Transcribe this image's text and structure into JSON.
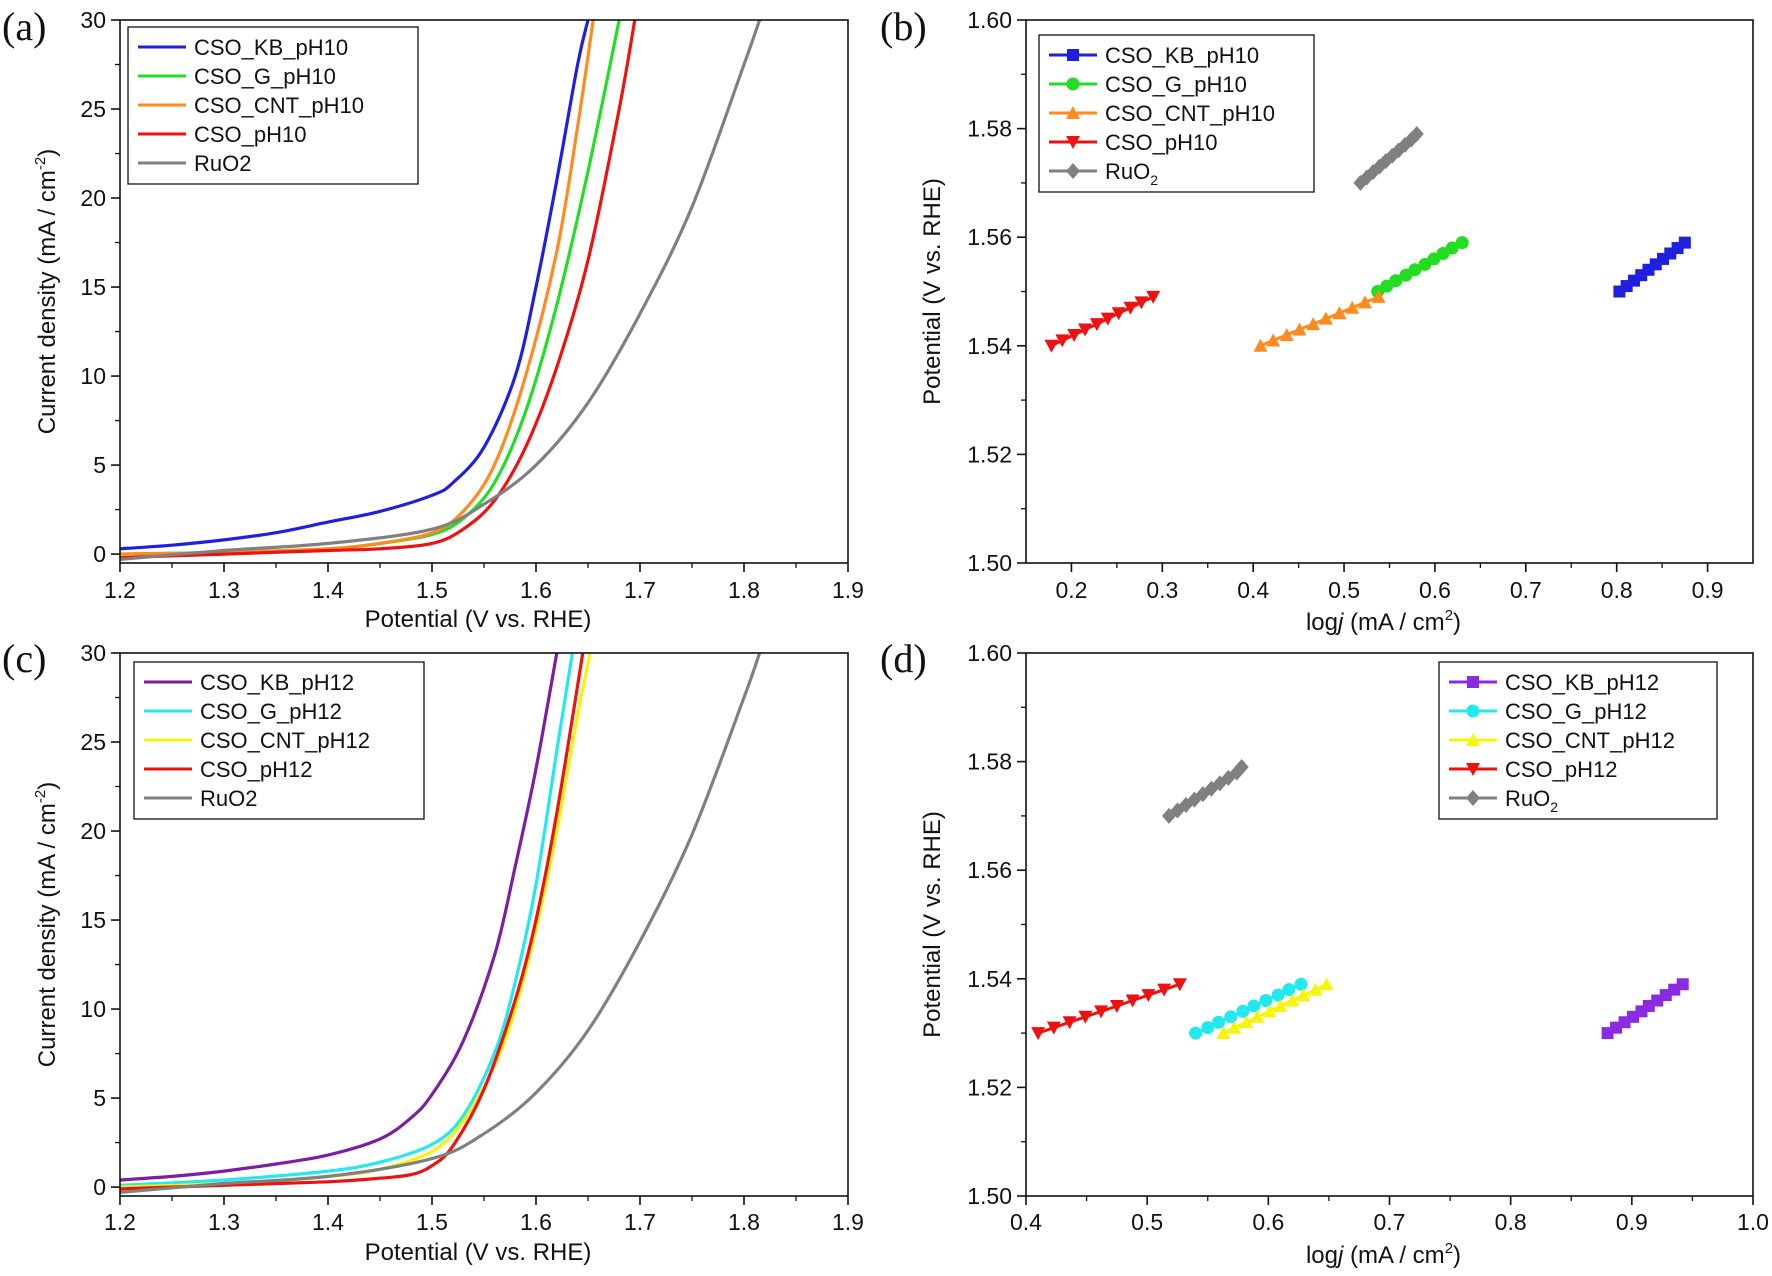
{
  "figure": {
    "panels": [
      {
        "id": "a",
        "label": "(a)",
        "type": "line",
        "xlabel": "Potential (V vs. RHE)",
        "ylabel": "Current density (mA / cm⁻²)",
        "xlim": [
          1.2,
          1.9
        ],
        "ylim": [
          -0.5,
          30
        ],
        "xticks": [
          1.2,
          1.3,
          1.4,
          1.5,
          1.6,
          1.7,
          1.8,
          1.9
        ],
        "xtick_labels": [
          "1.2",
          "1.3",
          "1.4",
          "1.5",
          "1.6",
          "1.7",
          "1.8",
          "1.9"
        ],
        "yticks": [
          0,
          5,
          10,
          15,
          20,
          25,
          30
        ],
        "ytick_labels": [
          "0",
          "5",
          "10",
          "15",
          "20",
          "25",
          "30"
        ],
        "legend_position": "top-left",
        "series": [
          {
            "name": "CSO_KB_pH10",
            "color": "#1f1fe0",
            "x": [
              1.2,
              1.25,
              1.3,
              1.35,
              1.4,
              1.45,
              1.5,
              1.52,
              1.55,
              1.58,
              1.6,
              1.62,
              1.64,
              1.65
            ],
            "y": [
              0.3,
              0.5,
              0.8,
              1.2,
              1.8,
              2.4,
              3.3,
              4.0,
              6.0,
              10.0,
              15.0,
              21.0,
              27.5,
              30
            ]
          },
          {
            "name": "CSO_G_pH10",
            "color": "#22dd22",
            "x": [
              1.2,
              1.3,
              1.4,
              1.45,
              1.5,
              1.53,
              1.56,
              1.59,
              1.62,
              1.65,
              1.68
            ],
            "y": [
              0.0,
              0.1,
              0.3,
              0.6,
              1.1,
              2.0,
              4.0,
              8.0,
              14.0,
              21.5,
              30
            ]
          },
          {
            "name": "CSO_CNT_pH10",
            "color": "#ff8a1e",
            "x": [
              1.2,
              1.3,
              1.4,
              1.45,
              1.5,
              1.53,
              1.56,
              1.59,
              1.62,
              1.64,
              1.655
            ],
            "y": [
              0.0,
              0.1,
              0.3,
              0.6,
              1.2,
              2.4,
              5.0,
              10.0,
              17.0,
              24.0,
              30
            ]
          },
          {
            "name": "CSO_pH10",
            "color": "#ee1111",
            "x": [
              1.2,
              1.3,
              1.4,
              1.45,
              1.5,
              1.53,
              1.56,
              1.59,
              1.62,
              1.65,
              1.68,
              1.695
            ],
            "y": [
              -0.2,
              0.0,
              0.2,
              0.3,
              0.6,
              1.4,
              3.0,
              6.0,
              10.5,
              16.5,
              25.0,
              30
            ]
          },
          {
            "name": "RuO2",
            "color": "#808080",
            "x": [
              1.2,
              1.3,
              1.4,
              1.5,
              1.55,
              1.6,
              1.65,
              1.7,
              1.75,
              1.8,
              1.815
            ],
            "y": [
              -0.3,
              0.2,
              0.6,
              1.4,
              2.8,
              5.0,
              8.5,
              13.5,
              19.5,
              27.5,
              30
            ]
          }
        ]
      },
      {
        "id": "b",
        "label": "(b)",
        "type": "scatter",
        "xlabel": "logj (mA / cm²)",
        "ylabel": "Potential (V vs. RHE)",
        "xlim": [
          0.15,
          0.95
        ],
        "ylim": [
          1.5,
          1.6
        ],
        "xticks": [
          0.2,
          0.3,
          0.4,
          0.5,
          0.6,
          0.7,
          0.8,
          0.9
        ],
        "xtick_labels": [
          "0.2",
          "0.3",
          "0.4",
          "0.5",
          "0.6",
          "0.7",
          "0.8",
          "0.9"
        ],
        "yticks": [
          1.5,
          1.52,
          1.54,
          1.56,
          1.58,
          1.6
        ],
        "ytick_labels": [
          "1.50",
          "1.52",
          "1.54",
          "1.56",
          "1.58",
          "1.60"
        ],
        "legend_position": "top-left",
        "series": [
          {
            "name": "CSO_KB_pH10",
            "color": "#1f1fe0",
            "marker": "square",
            "x": [
              0.803,
              0.811,
              0.819,
              0.827,
              0.835,
              0.843,
              0.851,
              0.859,
              0.867,
              0.875
            ],
            "y": [
              1.55,
              1.551,
              1.552,
              1.553,
              1.554,
              1.555,
              1.556,
              1.557,
              1.558,
              1.559
            ]
          },
          {
            "name": "CSO_G_pH10",
            "color": "#22dd22",
            "marker": "circle",
            "x": [
              0.537,
              0.547,
              0.557,
              0.568,
              0.578,
              0.589,
              0.599,
              0.609,
              0.619,
              0.63
            ],
            "y": [
              1.55,
              1.551,
              1.552,
              1.553,
              1.554,
              1.555,
              1.556,
              1.557,
              1.558,
              1.559
            ]
          },
          {
            "name": "CSO_CNT_pH10",
            "color": "#ff8a1e",
            "marker": "triangle-up",
            "x": [
              0.408,
              0.422,
              0.437,
              0.451,
              0.466,
              0.48,
              0.495,
              0.509,
              0.523,
              0.538
            ],
            "y": [
              1.54,
              1.541,
              1.542,
              1.543,
              1.544,
              1.545,
              1.546,
              1.547,
              1.548,
              1.549
            ]
          },
          {
            "name": "CSO_pH10",
            "color": "#ee1111",
            "marker": "triangle-down",
            "x": [
              0.178,
              0.19,
              0.203,
              0.215,
              0.228,
              0.24,
              0.252,
              0.265,
              0.277,
              0.29
            ],
            "y": [
              1.54,
              1.541,
              1.542,
              1.543,
              1.544,
              1.545,
              1.546,
              1.547,
              1.548,
              1.549
            ]
          },
          {
            "name": "RuO2",
            "color": "#808080",
            "marker": "diamond",
            "x": [
              0.518,
              0.525,
              0.532,
              0.539,
              0.546,
              0.553,
              0.56,
              0.567,
              0.574,
              0.58
            ],
            "y": [
              1.57,
              1.571,
              1.572,
              1.573,
              1.574,
              1.575,
              1.576,
              1.577,
              1.578,
              1.579
            ]
          }
        ]
      },
      {
        "id": "c",
        "label": "(c)",
        "type": "line",
        "xlabel": "Potential (V vs. RHE)",
        "ylabel": "Current density (mA / cm⁻²)",
        "xlim": [
          1.2,
          1.9
        ],
        "ylim": [
          -0.5,
          30
        ],
        "xticks": [
          1.2,
          1.3,
          1.4,
          1.5,
          1.6,
          1.7,
          1.8,
          1.9
        ],
        "xtick_labels": [
          "1.2",
          "1.3",
          "1.4",
          "1.5",
          "1.6",
          "1.7",
          "1.8",
          "1.9"
        ],
        "yticks": [
          0,
          5,
          10,
          15,
          20,
          25,
          30
        ],
        "ytick_labels": [
          "0",
          "5",
          "10",
          "15",
          "20",
          "25",
          "30"
        ],
        "legend_position": "top-left",
        "series": [
          {
            "name": "CSO_KB_pH12",
            "color": "#7b1fa2",
            "x": [
              1.2,
              1.25,
              1.3,
              1.35,
              1.4,
              1.45,
              1.48,
              1.5,
              1.53,
              1.56,
              1.58,
              1.6,
              1.62
            ],
            "y": [
              0.4,
              0.6,
              0.9,
              1.3,
              1.8,
              2.7,
              3.9,
              5.2,
              8.2,
              13.0,
              18.0,
              23.5,
              30
            ]
          },
          {
            "name": "CSO_G_pH12",
            "color": "#22e8f0",
            "x": [
              1.2,
              1.3,
              1.4,
              1.45,
              1.5,
              1.53,
              1.56,
              1.58,
              1.6,
              1.62,
              1.635
            ],
            "y": [
              0.1,
              0.4,
              0.9,
              1.4,
              2.4,
              4.0,
              7.5,
              11.5,
              17.0,
              24.5,
              30
            ]
          },
          {
            "name": "CSO_CNT_pH12",
            "color": "#f5f50a",
            "x": [
              1.2,
              1.3,
              1.4,
              1.45,
              1.5,
              1.53,
              1.56,
              1.58,
              1.6,
              1.62,
              1.64,
              1.652
            ],
            "y": [
              0.0,
              0.2,
              0.6,
              1.0,
              2.0,
              3.7,
              6.8,
              10.0,
              14.5,
              20.0,
              26.5,
              30
            ]
          },
          {
            "name": "CSO_pH12",
            "color": "#ee1111",
            "x": [
              1.2,
              1.3,
              1.4,
              1.45,
              1.48,
              1.5,
              1.52,
              1.55,
              1.58,
              1.6,
              1.62,
              1.645
            ],
            "y": [
              -0.1,
              0.1,
              0.3,
              0.5,
              0.7,
              1.2,
              2.3,
              5.5,
              10.5,
              15.0,
              21.0,
              30
            ]
          },
          {
            "name": "RuO2",
            "color": "#808080",
            "x": [
              1.2,
              1.3,
              1.4,
              1.5,
              1.55,
              1.6,
              1.65,
              1.7,
              1.75,
              1.8,
              1.815
            ],
            "y": [
              -0.3,
              0.2,
              0.6,
              1.6,
              3.0,
              5.3,
              8.8,
              13.8,
              19.8,
              27.5,
              30
            ]
          }
        ]
      },
      {
        "id": "d",
        "label": "(d)",
        "type": "scatter",
        "xlabel": "logj (mA / cm²)",
        "ylabel": "Potential (V vs. RHE)",
        "xlim": [
          0.4,
          1.0
        ],
        "ylim": [
          1.5,
          1.6
        ],
        "xticks": [
          0.4,
          0.5,
          0.6,
          0.7,
          0.8,
          0.9,
          1.0
        ],
        "xtick_labels": [
          "0.4",
          "0.5",
          "0.6",
          "0.7",
          "0.8",
          "0.9",
          "1.0"
        ],
        "yticks": [
          1.5,
          1.52,
          1.54,
          1.56,
          1.58,
          1.6
        ],
        "ytick_labels": [
          "1.50",
          "1.52",
          "1.54",
          "1.56",
          "1.58",
          "1.60"
        ],
        "legend_position": "top-right",
        "series": [
          {
            "name": "CSO_KB_pH12",
            "color": "#8a2be2",
            "marker": "square",
            "x": [
              0.88,
              0.887,
              0.894,
              0.901,
              0.908,
              0.914,
              0.921,
              0.928,
              0.935,
              0.942
            ],
            "y": [
              1.53,
              1.531,
              1.532,
              1.533,
              1.534,
              1.535,
              1.536,
              1.537,
              1.538,
              1.539
            ]
          },
          {
            "name": "CSO_G_pH12",
            "color": "#22e8f0",
            "marker": "circle",
            "x": [
              0.54,
              0.55,
              0.559,
              0.569,
              0.579,
              0.588,
              0.598,
              0.608,
              0.617,
              0.627
            ],
            "y": [
              1.53,
              1.531,
              1.532,
              1.533,
              1.534,
              1.535,
              1.536,
              1.537,
              1.538,
              1.539
            ]
          },
          {
            "name": "CSO_CNT_pH12",
            "color": "#f5f50a",
            "marker": "triangle-up",
            "x": [
              0.563,
              0.572,
              0.582,
              0.591,
              0.601,
              0.61,
              0.62,
              0.629,
              0.639,
              0.648
            ],
            "y": [
              1.53,
              1.531,
              1.532,
              1.533,
              1.534,
              1.535,
              1.536,
              1.537,
              1.538,
              1.539
            ]
          },
          {
            "name": "CSO_pH12",
            "color": "#ee1111",
            "marker": "triangle-down",
            "x": [
              0.41,
              0.423,
              0.436,
              0.449,
              0.462,
              0.475,
              0.488,
              0.501,
              0.514,
              0.527
            ],
            "y": [
              1.53,
              1.531,
              1.532,
              1.533,
              1.534,
              1.535,
              1.536,
              1.537,
              1.538,
              1.539
            ]
          },
          {
            "name": "RuO2",
            "color": "#808080",
            "marker": "diamond",
            "x": [
              0.518,
              0.525,
              0.532,
              0.539,
              0.546,
              0.553,
              0.56,
              0.567,
              0.574,
              0.578
            ],
            "y": [
              1.57,
              1.571,
              1.572,
              1.573,
              1.574,
              1.575,
              1.576,
              1.577,
              1.578,
              1.579
            ]
          }
        ]
      }
    ]
  }
}
